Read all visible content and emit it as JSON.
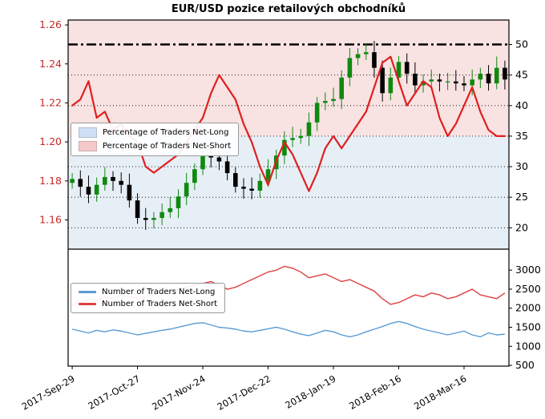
{
  "title": "EUR/USD pozice retailových obchodníků",
  "colors": {
    "candle_up": "#0f8a0f",
    "candle_down": "#000000",
    "pct_short_line": "#e01f1f",
    "net_long_line": "#5a9bd4",
    "net_short_line": "#e04040",
    "fill_net_long": "#e7eff6",
    "fill_net_short": "#f8e2e2",
    "left_axis_label": "#c62828",
    "axis": "#000000",
    "grid": "#000000"
  },
  "chart_data": {
    "type": "candlestick+line",
    "x_ticks": [
      {
        "label": "2017-Sep-29",
        "index": 0
      },
      {
        "label": "2017-Oct-27",
        "index": 8
      },
      {
        "label": "2017-Nov-24",
        "index": 16
      },
      {
        "label": "2017-Dec-22",
        "index": 24
      },
      {
        "label": "2018-Jan-19",
        "index": 32
      },
      {
        "label": "2018-Feb-16",
        "index": 40
      },
      {
        "label": "2018-Mar-16",
        "index": 48
      }
    ],
    "panels": [
      {
        "name": "price-and-sentiment",
        "left_axis": {
          "range": [
            1.145,
            1.2625
          ],
          "ticks": [
            {
              "label": "1.26",
              "value": 1.26
            },
            {
              "label": "1.24",
              "value": 1.24
            },
            {
              "label": "1.22",
              "value": 1.22
            },
            {
              "label": "1.20",
              "value": 1.2
            },
            {
              "label": "1.18",
              "value": 1.18
            },
            {
              "label": "1.16",
              "value": 1.16
            }
          ]
        },
        "right_axis": {
          "range": [
            16.5,
            54
          ],
          "ticks": [
            {
              "label": "50",
              "value": 50
            },
            {
              "label": "45",
              "value": 45
            },
            {
              "label": "40",
              "value": 40
            },
            {
              "label": "35",
              "value": 35
            },
            {
              "label": "30",
              "value": 30
            },
            {
              "label": "25",
              "value": 25
            },
            {
              "label": "20",
              "value": 20
            }
          ]
        },
        "dashed_level": 50,
        "grid_levels": [
          45,
          40,
          35,
          30,
          25,
          20
        ],
        "fill_boundary_pct": 35,
        "series": [
          {
            "name": "EUR/USD price",
            "type": "candlestick",
            "open_first": 1.179,
            "closes": [
              1.181,
              1.177,
              1.173,
              1.178,
              1.182,
              1.18,
              1.178,
              1.17,
              1.161,
              1.16,
              1.161,
              1.164,
              1.166,
              1.172,
              1.179,
              1.186,
              1.193,
              1.192,
              1.19,
              1.184,
              1.177,
              1.176,
              1.175,
              1.18,
              1.186,
              1.193,
              1.201,
              1.202,
              1.203,
              1.21,
              1.22,
              1.221,
              1.222,
              1.233,
              1.243,
              1.245,
              1.246,
              1.238,
              1.225,
              1.233,
              1.241,
              1.235,
              1.229,
              1.231,
              1.232,
              1.231,
              1.231,
              1.23,
              1.229,
              1.232,
              1.235,
              1.23,
              1.238,
              1.232
            ]
          },
          {
            "name": "Percentage of Traders Net-Short",
            "type": "line",
            "values": [
              40,
              41,
              44,
              38,
              39,
              36,
              37,
              35,
              34,
              30,
              29,
              30,
              31,
              32,
              34,
              36,
              38,
              42,
              45,
              43,
              41,
              37,
              34,
              30,
              27,
              31,
              34,
              32,
              29,
              26,
              29,
              33,
              35,
              33,
              35,
              37,
              39,
              43,
              47,
              48,
              44,
              40,
              42,
              44,
              43,
              38,
              35,
              37,
              40,
              43,
              39,
              36,
              35,
              35
            ]
          }
        ],
        "legend": [
          {
            "label": "Percentage of Traders Net-Long",
            "swatch": "#cfe0f4"
          },
          {
            "label": "Percentage of Traders Net-Short",
            "swatch": "#f5c9c9"
          }
        ]
      },
      {
        "name": "trader-counts",
        "right_axis": {
          "range": [
            480,
            3550
          ],
          "ticks": [
            {
              "label": "3000",
              "value": 3000
            },
            {
              "label": "2500",
              "value": 2500
            },
            {
              "label": "2000",
              "value": 2000
            },
            {
              "label": "1500",
              "value": 1500
            },
            {
              "label": "1000",
              "value": 1000
            },
            {
              "label": "500",
              "value": 500
            }
          ]
        },
        "series": [
          {
            "name": "Number of Traders Net-Long",
            "type": "line",
            "values": [
              1450,
              1400,
              1350,
              1420,
              1380,
              1430,
              1400,
              1350,
              1300,
              1340,
              1380,
              1420,
              1450,
              1500,
              1550,
              1600,
              1620,
              1560,
              1500,
              1480,
              1450,
              1400,
              1380,
              1420,
              1460,
              1500,
              1450,
              1380,
              1320,
              1280,
              1350,
              1420,
              1380,
              1300,
              1250,
              1300,
              1380,
              1450,
              1520,
              1600,
              1650,
              1600,
              1520,
              1450,
              1400,
              1350,
              1300,
              1350,
              1400,
              1300,
              1250,
              1350,
              1300,
              1320
            ]
          },
          {
            "name": "Number of Traders Net-Short",
            "type": "line",
            "values": [
              2100,
              2150,
              2250,
              2200,
              2300,
              2250,
              2350,
              2300,
              2250,
              2300,
              2350,
              2400,
              2450,
              2500,
              2550,
              2600,
              2650,
              2700,
              2600,
              2500,
              2550,
              2650,
              2750,
              2850,
              2950,
              3000,
              3100,
              3050,
              2950,
              2800,
              2850,
              2900,
              2800,
              2700,
              2750,
              2650,
              2550,
              2450,
              2250,
              2100,
              2150,
              2250,
              2350,
              2300,
              2400,
              2350,
              2250,
              2300,
              2400,
              2500,
              2350,
              2300,
              2250,
              2400
            ]
          }
        ],
        "legend": [
          {
            "label": "Number of Traders Net-Long",
            "swatch": "#5a9bd4"
          },
          {
            "label": "Number of Traders Net-Short",
            "swatch": "#e04040"
          }
        ]
      }
    ]
  }
}
